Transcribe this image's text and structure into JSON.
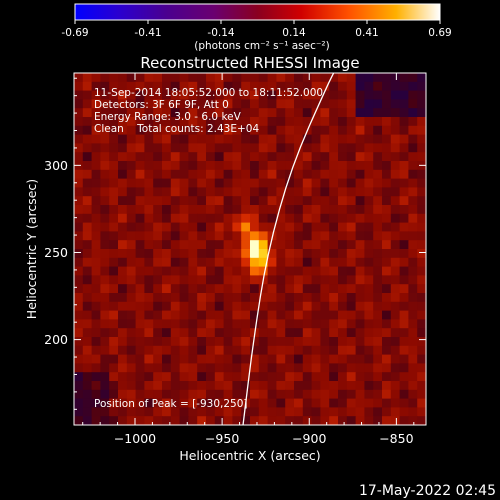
{
  "chart_data": {
    "type": "heatmap",
    "title": "Reconstructed RHESSI Image",
    "xlabel": "Heliocentric X (arcsec)",
    "ylabel": "Heliocentric Y (arcsec)",
    "x_ticks": [
      -1000,
      -950,
      -900,
      -850
    ],
    "y_ticks": [
      200,
      250,
      300
    ],
    "xlim": [
      -1035,
      -833
    ],
    "ylim": [
      151,
      353
    ],
    "colorbar": {
      "ticks": [
        "-0.69",
        "-0.41",
        "-0.14",
        "0.14",
        "0.41",
        "0.69"
      ],
      "range": [
        -0.69,
        0.69
      ],
      "unit_label": "(photons cm⁻² s⁻¹ asec⁻²)"
    },
    "info_lines": [
      "11-Sep-2014 18:05:52.000 to 18:11:52.000",
      "Detectors: 3F 6F 9F, Att 0",
      "Energy Range: 3.0 - 6.0 keV",
      "Clean    Total counts: 2.43E+04"
    ],
    "peak_label": "Position of Peak = [-930,250]",
    "peak": {
      "x": -930,
      "y": 250,
      "value": 0.69
    },
    "limb_curve": [
      [
        -938,
        151
      ],
      [
        -932,
        200
      ],
      [
        -924,
        250
      ],
      [
        -910,
        300
      ],
      [
        -890,
        345
      ],
      [
        -886,
        353
      ]
    ],
    "limb_color": "#ffffff"
  },
  "footer": {
    "timestamp": "17-May-2022 02:45"
  }
}
